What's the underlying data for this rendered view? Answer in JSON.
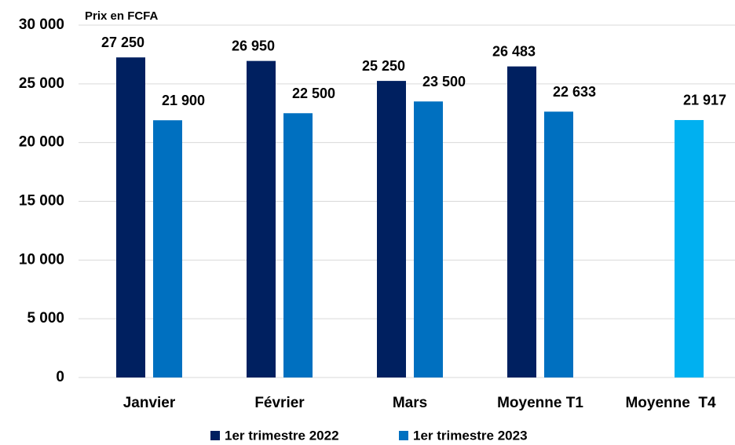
{
  "chart_data": {
    "type": "bar",
    "y_label": "Prix en FCFA",
    "categories": [
      "Janvier",
      "Février",
      "Mars",
      "Moyenne T1",
      "Moyenne  T4"
    ],
    "series": [
      {
        "name": "1er trimestre 2022",
        "color": "#002060",
        "values": [
          27250,
          26950,
          25250,
          26483,
          null
        ],
        "value_labels": [
          "27 250",
          "26 950",
          "25 250",
          "26 483",
          null
        ]
      },
      {
        "name": "1er trimestre 2023",
        "color": "#0070c0",
        "colors": [
          "#0070c0",
          "#0070c0",
          "#0070c0",
          "#0070c0",
          "#00b0f0"
        ],
        "values": [
          21900,
          22500,
          23500,
          22633,
          21917
        ],
        "value_labels": [
          "21 900",
          "22 500",
          "23 500",
          "22 633",
          "21 917"
        ]
      }
    ],
    "ylim": [
      0,
      30000
    ],
    "yticks": [
      0,
      {
        "value": 5000,
        "label": "5 000"
      },
      {
        "value": 10000,
        "label": "10 000"
      },
      {
        "value": 15000,
        "label": "15 000"
      },
      {
        "value": 20000,
        "label": "20 000"
      },
      {
        "value": 25000,
        "label": "25 000"
      },
      {
        "value": 30000,
        "label": "30 000"
      }
    ],
    "grid": true
  }
}
